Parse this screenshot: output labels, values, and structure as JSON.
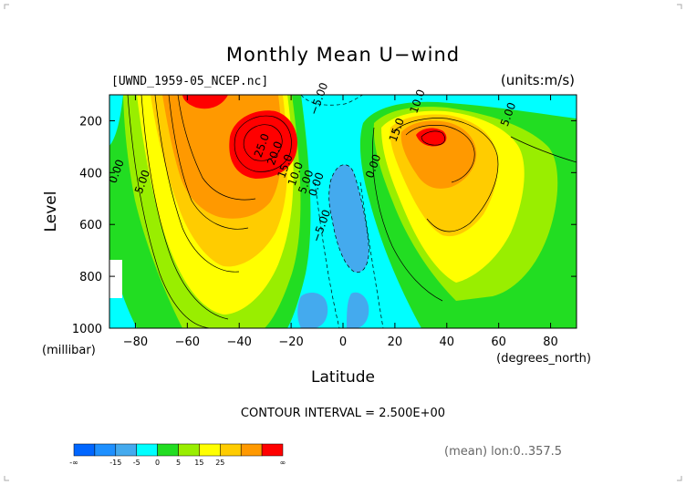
{
  "chart_data": {
    "type": "contour",
    "title": "Monthly Mean U−wind",
    "file_label": "[UWND_1959-05_NCEP.nc]",
    "units_label": "(units:m/s)",
    "xlabel": "Latitude",
    "xlabel_unit": "(degrees_north)",
    "ylabel": "Level",
    "ylabel_unit": "(millibar)",
    "x_ticks": [
      -80,
      -60,
      -40,
      -20,
      0,
      20,
      40,
      60,
      80
    ],
    "y_ticks": [
      200,
      400,
      600,
      800,
      1000
    ],
    "xlim": [
      -90,
      90
    ],
    "ylim": [
      1000,
      100
    ],
    "contour_interval_text": "CONTOUR INTERVAL = 2.500E+00",
    "mean_info": "(mean) lon:0..357.5",
    "colorbar": {
      "colors": [
        "#0066ff",
        "#1e90ff",
        "#44aaee",
        "#00ffff",
        "#22dd22",
        "#99ee00",
        "#ffff00",
        "#ffcc00",
        "#ff9900",
        "#ff0000"
      ],
      "labels": [
        "-∞",
        "-15",
        "-5",
        "0",
        "5",
        "15",
        "25",
        "∞"
      ]
    },
    "contour_labels": [
      {
        "text": "−5.00",
        "lat": -8,
        "lev": 120
      },
      {
        "text": "10.0",
        "lat": 30,
        "lev": 130
      },
      {
        "text": "5.00",
        "lat": 65,
        "lev": 180
      },
      {
        "text": "15.0",
        "lat": 22,
        "lev": 240
      },
      {
        "text": "25.0",
        "lat": -30,
        "lev": 300
      },
      {
        "text": "20.0",
        "lat": -25,
        "lev": 330
      },
      {
        "text": "15.0",
        "lat": -21,
        "lev": 380
      },
      {
        "text": "10.0",
        "lat": -17,
        "lev": 410
      },
      {
        "text": "5.00",
        "lat": -13,
        "lev": 440
      },
      {
        "text": "0.00",
        "lat": -9,
        "lev": 450
      },
      {
        "text": "0.00",
        "lat": 13,
        "lev": 380
      },
      {
        "text": "0.00",
        "lat": -86,
        "lev": 400
      },
      {
        "text": "5.00",
        "lat": -76,
        "lev": 440
      },
      {
        "text": "−5.00",
        "lat": -7,
        "lev": 610
      }
    ]
  }
}
